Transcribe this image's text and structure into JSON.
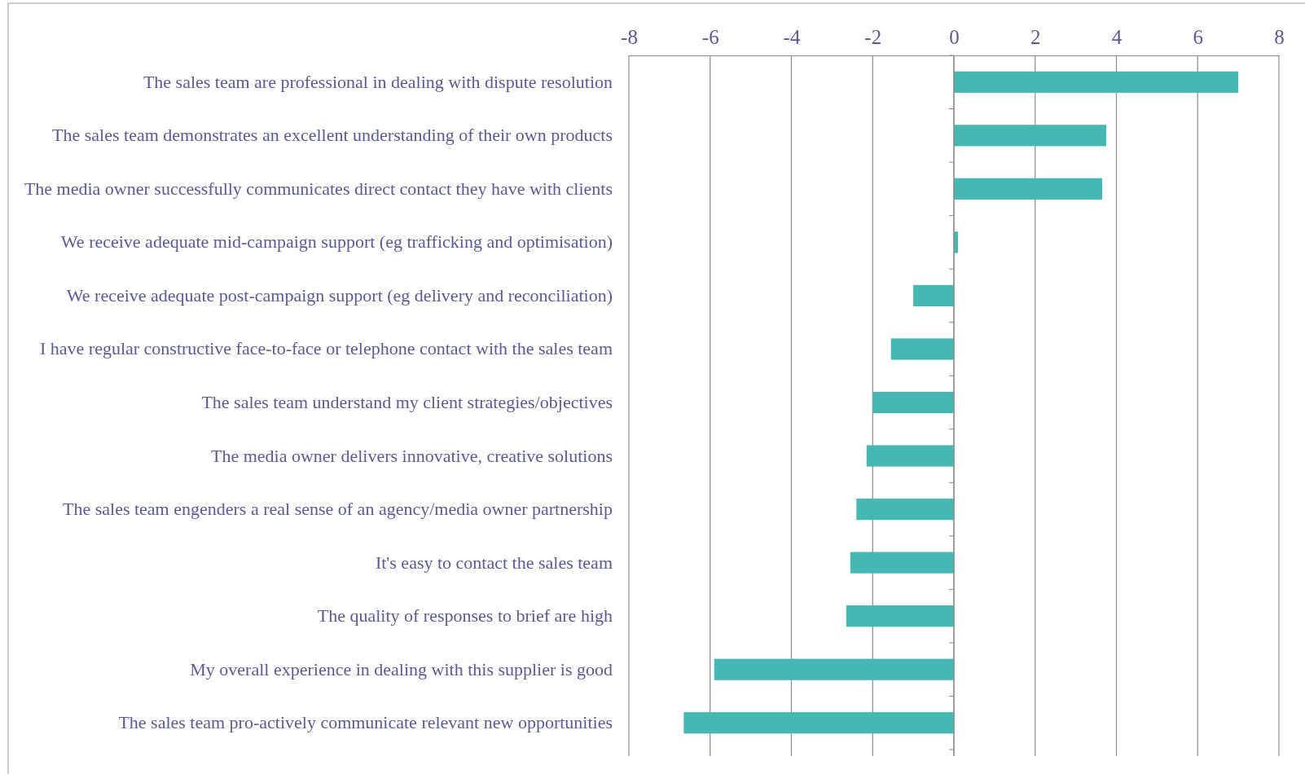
{
  "chart_data": {
    "type": "bar",
    "orientation": "horizontal",
    "categories": [
      "The sales team are professional in dealing with dispute resolution",
      "The sales team demonstrates an excellent understanding of their own products",
      "The media owner successfully communicates direct contact they have with clients",
      "We receive adequate mid-campaign support (eg trafficking and optimisation)",
      "We receive adequate post-campaign support (eg delivery and reconciliation)",
      "I have regular constructive face-to-face or telephone contact with the sales team",
      "The sales team understand my client strategies/objectives",
      "The media owner delivers innovative, creative solutions",
      "The sales team engenders a real sense of an agency/media owner partnership",
      "It's easy to contact the sales team",
      "The quality of responses to brief are high",
      "My overall experience in dealing with this supplier is good",
      "The sales team pro-actively communicate relevant new opportunities"
    ],
    "values": [
      7.0,
      3.75,
      3.65,
      0.1,
      -1.0,
      -1.55,
      -2.0,
      -2.15,
      -2.4,
      -2.55,
      -2.65,
      -5.9,
      -6.65
    ],
    "color": "#45b8b4",
    "xlim": [
      -8,
      8
    ],
    "xticks": [
      -8,
      -6,
      -4,
      -2,
      0,
      2,
      4,
      6,
      8
    ],
    "grid": "x"
  }
}
